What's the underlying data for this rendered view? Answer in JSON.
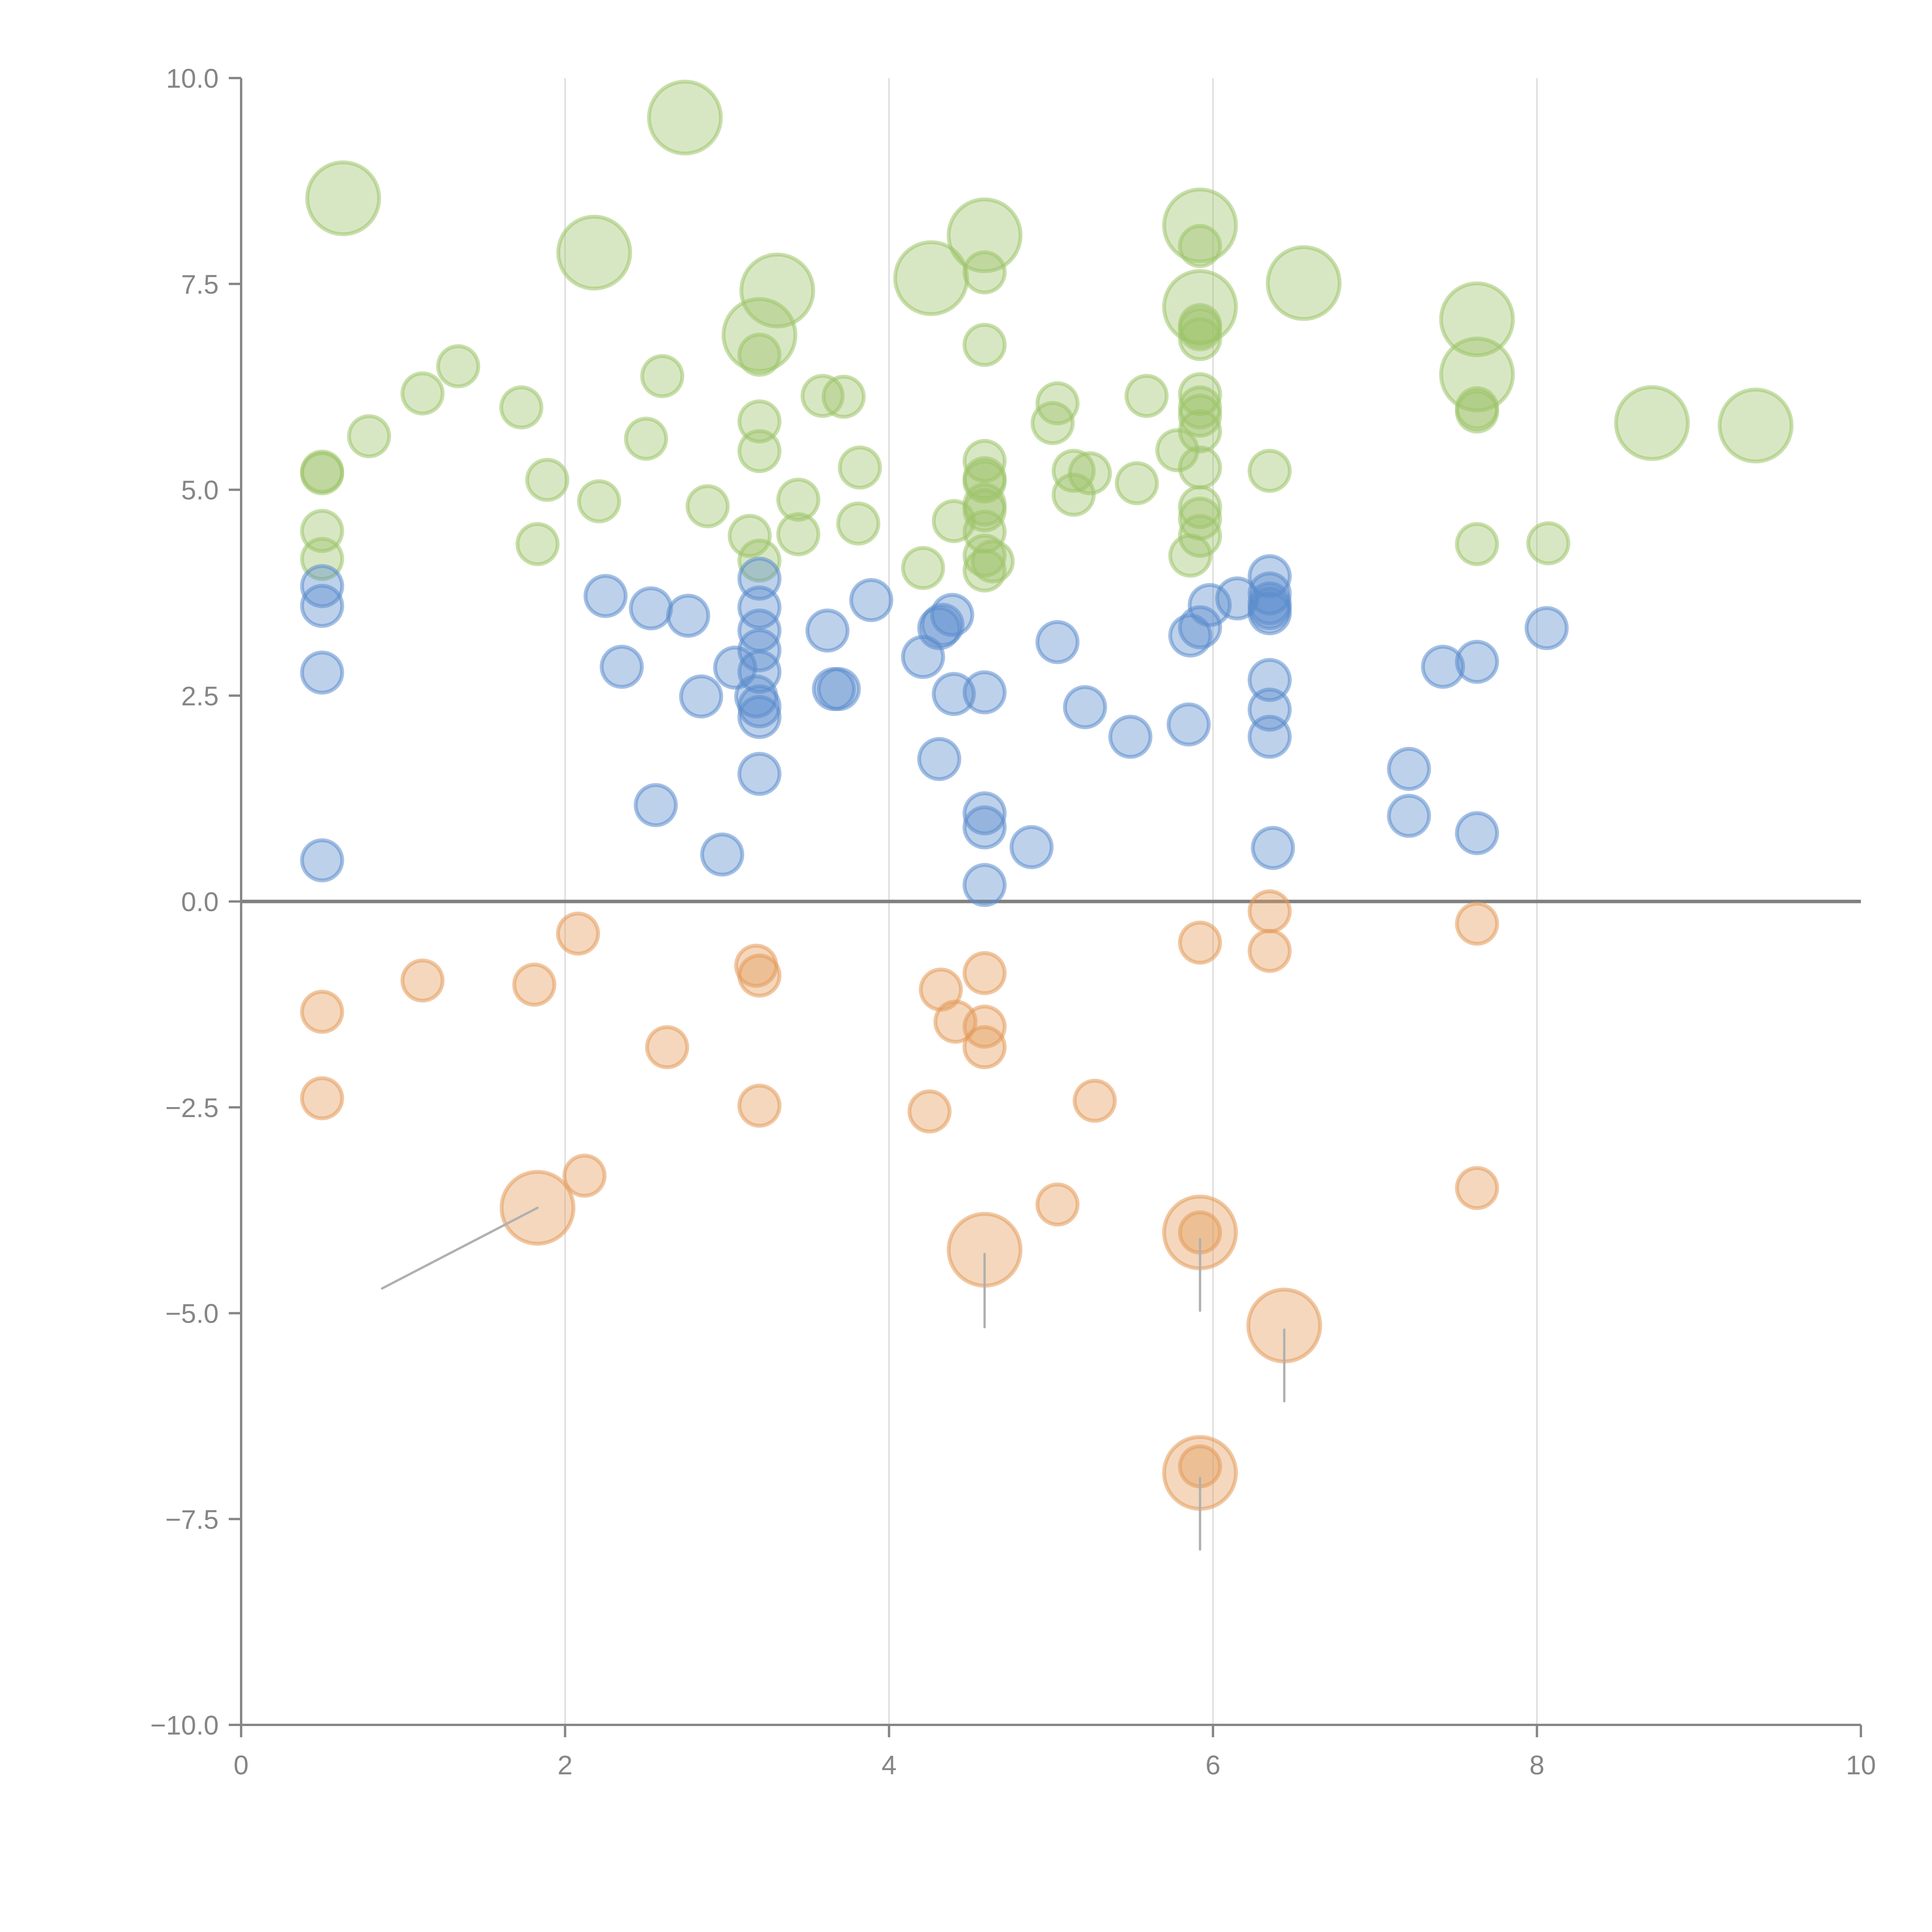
{
  "chart_data": {
    "type": "scatter",
    "subtype": "bubble",
    "title": "",
    "xlabel": "",
    "ylabel": "",
    "xlim": [
      0,
      10
    ],
    "ylim": [
      -10,
      10
    ],
    "x_ticks": [
      "0",
      "2",
      "4",
      "6",
      "8",
      "10"
    ],
    "x_tick_values": [
      0,
      2,
      4,
      6,
      8,
      10
    ],
    "y_ticks": [
      "10.0",
      "7.5",
      "5.0",
      "2.5",
      "0.0",
      "−2.5",
      "−5.0",
      "−7.5",
      "−10.0"
    ],
    "y_tick_values": [
      10,
      7.5,
      5,
      2.5,
      0,
      -2.5,
      -5,
      -7.5,
      -10
    ],
    "grid": "vertical lines at x ticks",
    "zero_line": true,
    "legend": "none",
    "series": [
      {
        "name": "green",
        "color": "#9dc46a",
        "points": [
          {
            "x": 0.63,
            "y": 8.54,
            "size": 3.2
          },
          {
            "x": 2.74,
            "y": 9.52,
            "size": 3.2
          },
          {
            "x": 2.18,
            "y": 7.88,
            "size": 3.2
          },
          {
            "x": 3.31,
            "y": 7.42,
            "size": 3.2
          },
          {
            "x": 3.2,
            "y": 6.88,
            "size": 3.2
          },
          {
            "x": 4.26,
            "y": 7.57,
            "size": 3.2
          },
          {
            "x": 4.59,
            "y": 8.09,
            "size": 3.2
          },
          {
            "x": 5.92,
            "y": 8.21,
            "size": 3.2
          },
          {
            "x": 5.92,
            "y": 7.22,
            "size": 3.2
          },
          {
            "x": 6.56,
            "y": 7.51,
            "size": 3.2
          },
          {
            "x": 7.63,
            "y": 7.07,
            "size": 3.2
          },
          {
            "x": 7.63,
            "y": 6.4,
            "size": 3.2
          },
          {
            "x": 8.71,
            "y": 5.81,
            "size": 3.2
          },
          {
            "x": 9.35,
            "y": 5.78,
            "size": 3.2
          },
          {
            "x": 0.5,
            "y": 5.2,
            "size": 1
          },
          {
            "x": 0.5,
            "y": 5.22,
            "size": 1
          },
          {
            "x": 0.5,
            "y": 4.5,
            "size": 1
          },
          {
            "x": 0.5,
            "y": 4.16,
            "size": 1
          },
          {
            "x": 0.79,
            "y": 5.65,
            "size": 1
          },
          {
            "x": 1.12,
            "y": 6.17,
            "size": 1
          },
          {
            "x": 1.34,
            "y": 6.5,
            "size": 1
          },
          {
            "x": 1.73,
            "y": 6.0,
            "size": 1
          },
          {
            "x": 1.89,
            "y": 5.12,
            "size": 1
          },
          {
            "x": 1.83,
            "y": 4.34,
            "size": 1
          },
          {
            "x": 2.21,
            "y": 4.86,
            "size": 1
          },
          {
            "x": 2.5,
            "y": 5.62,
            "size": 1
          },
          {
            "x": 2.6,
            "y": 6.38,
            "size": 1
          },
          {
            "x": 2.88,
            "y": 4.8,
            "size": 1
          },
          {
            "x": 3.14,
            "y": 4.44,
            "size": 1
          },
          {
            "x": 3.2,
            "y": 6.64,
            "size": 1
          },
          {
            "x": 3.2,
            "y": 5.83,
            "size": 1
          },
          {
            "x": 3.2,
            "y": 5.47,
            "size": 1
          },
          {
            "x": 3.2,
            "y": 4.14,
            "size": 1
          },
          {
            "x": 3.44,
            "y": 4.88,
            "size": 1
          },
          {
            "x": 3.44,
            "y": 4.46,
            "size": 1
          },
          {
            "x": 3.59,
            "y": 6.14,
            "size": 1
          },
          {
            "x": 3.72,
            "y": 6.13,
            "size": 1
          },
          {
            "x": 3.82,
            "y": 5.27,
            "size": 1
          },
          {
            "x": 3.81,
            "y": 4.59,
            "size": 1
          },
          {
            "x": 4.21,
            "y": 4.05,
            "size": 1
          },
          {
            "x": 4.4,
            "y": 4.62,
            "size": 1
          },
          {
            "x": 4.59,
            "y": 7.64,
            "size": 1
          },
          {
            "x": 4.59,
            "y": 6.76,
            "size": 1
          },
          {
            "x": 4.59,
            "y": 5.35,
            "size": 1
          },
          {
            "x": 4.59,
            "y": 5.14,
            "size": 1
          },
          {
            "x": 4.59,
            "y": 5.1,
            "size": 1
          },
          {
            "x": 4.59,
            "y": 4.82,
            "size": 1
          },
          {
            "x": 4.59,
            "y": 4.75,
            "size": 1
          },
          {
            "x": 4.59,
            "y": 4.49,
            "size": 1
          },
          {
            "x": 4.59,
            "y": 4.2,
            "size": 1
          },
          {
            "x": 4.59,
            "y": 4.02,
            "size": 1
          },
          {
            "x": 4.64,
            "y": 4.13,
            "size": 1
          },
          {
            "x": 5.01,
            "y": 5.81,
            "size": 1
          },
          {
            "x": 5.04,
            "y": 6.05,
            "size": 1
          },
          {
            "x": 5.14,
            "y": 5.23,
            "size": 1
          },
          {
            "x": 5.14,
            "y": 4.94,
            "size": 1
          },
          {
            "x": 5.24,
            "y": 5.2,
            "size": 1
          },
          {
            "x": 5.53,
            "y": 5.08,
            "size": 1
          },
          {
            "x": 5.59,
            "y": 6.14,
            "size": 1
          },
          {
            "x": 5.78,
            "y": 5.48,
            "size": 1
          },
          {
            "x": 5.86,
            "y": 4.2,
            "size": 1
          },
          {
            "x": 5.92,
            "y": 7.96,
            "size": 1
          },
          {
            "x": 5.92,
            "y": 7.0,
            "size": 1
          },
          {
            "x": 5.92,
            "y": 6.95,
            "size": 1
          },
          {
            "x": 5.92,
            "y": 6.83,
            "size": 1
          },
          {
            "x": 5.92,
            "y": 6.16,
            "size": 1
          },
          {
            "x": 5.92,
            "y": 6.0,
            "size": 1
          },
          {
            "x": 5.92,
            "y": 5.9,
            "size": 1
          },
          {
            "x": 5.92,
            "y": 5.71,
            "size": 1
          },
          {
            "x": 5.92,
            "y": 5.27,
            "size": 1
          },
          {
            "x": 5.92,
            "y": 4.79,
            "size": 1
          },
          {
            "x": 5.92,
            "y": 4.65,
            "size": 1
          },
          {
            "x": 5.92,
            "y": 4.44,
            "size": 1
          },
          {
            "x": 6.35,
            "y": 5.23,
            "size": 1
          },
          {
            "x": 7.63,
            "y": 5.99,
            "size": 1
          },
          {
            "x": 7.63,
            "y": 5.95,
            "size": 1
          },
          {
            "x": 7.63,
            "y": 4.34,
            "size": 1
          },
          {
            "x": 8.07,
            "y": 4.35,
            "size": 1
          }
        ]
      },
      {
        "name": "blue",
        "color": "#5b8ccc",
        "points": [
          {
            "x": 0.5,
            "y": 3.83,
            "size": 1
          },
          {
            "x": 0.5,
            "y": 3.59,
            "size": 1
          },
          {
            "x": 0.5,
            "y": 2.78,
            "size": 1
          },
          {
            "x": 0.5,
            "y": 0.5,
            "size": 1
          },
          {
            "x": 2.25,
            "y": 3.71,
            "size": 1
          },
          {
            "x": 2.35,
            "y": 2.85,
            "size": 1
          },
          {
            "x": 2.53,
            "y": 3.56,
            "size": 1
          },
          {
            "x": 2.56,
            "y": 1.17,
            "size": 1
          },
          {
            "x": 2.76,
            "y": 3.47,
            "size": 1
          },
          {
            "x": 2.84,
            "y": 2.49,
            "size": 1
          },
          {
            "x": 2.97,
            "y": 0.57,
            "size": 1
          },
          {
            "x": 3.05,
            "y": 2.84,
            "size": 1
          },
          {
            "x": 3.2,
            "y": 3.92,
            "size": 1
          },
          {
            "x": 3.2,
            "y": 3.57,
            "size": 1
          },
          {
            "x": 3.2,
            "y": 3.29,
            "size": 1
          },
          {
            "x": 3.2,
            "y": 3.05,
            "size": 1
          },
          {
            "x": 3.2,
            "y": 2.79,
            "size": 1
          },
          {
            "x": 3.18,
            "y": 2.49,
            "size": 1
          },
          {
            "x": 3.2,
            "y": 2.37,
            "size": 1
          },
          {
            "x": 3.2,
            "y": 2.24,
            "size": 1
          },
          {
            "x": 3.2,
            "y": 1.55,
            "size": 1
          },
          {
            "x": 3.62,
            "y": 3.29,
            "size": 1
          },
          {
            "x": 3.66,
            "y": 2.58,
            "size": 1
          },
          {
            "x": 3.69,
            "y": 2.58,
            "size": 1
          },
          {
            "x": 3.89,
            "y": 3.66,
            "size": 1
          },
          {
            "x": 4.21,
            "y": 2.97,
            "size": 1
          },
          {
            "x": 4.31,
            "y": 3.32,
            "size": 1
          },
          {
            "x": 4.33,
            "y": 3.36,
            "size": 1
          },
          {
            "x": 4.39,
            "y": 3.48,
            "size": 1
          },
          {
            "x": 4.4,
            "y": 2.52,
            "size": 1
          },
          {
            "x": 4.31,
            "y": 1.73,
            "size": 1
          },
          {
            "x": 4.59,
            "y": 2.54,
            "size": 1
          },
          {
            "x": 4.59,
            "y": 1.07,
            "size": 1
          },
          {
            "x": 4.59,
            "y": 0.9,
            "size": 1
          },
          {
            "x": 4.59,
            "y": 0.2,
            "size": 1
          },
          {
            "x": 4.88,
            "y": 0.66,
            "size": 1
          },
          {
            "x": 5.04,
            "y": 3.15,
            "size": 1
          },
          {
            "x": 5.21,
            "y": 2.36,
            "size": 1
          },
          {
            "x": 5.49,
            "y": 2.0,
            "size": 1
          },
          {
            "x": 5.86,
            "y": 3.23,
            "size": 1
          },
          {
            "x": 5.92,
            "y": 3.33,
            "size": 1
          },
          {
            "x": 5.98,
            "y": 3.6,
            "size": 1
          },
          {
            "x": 5.85,
            "y": 2.15,
            "size": 1
          },
          {
            "x": 6.15,
            "y": 3.68,
            "size": 1
          },
          {
            "x": 6.35,
            "y": 3.95,
            "size": 1
          },
          {
            "x": 6.35,
            "y": 3.74,
            "size": 1
          },
          {
            "x": 6.35,
            "y": 3.62,
            "size": 1
          },
          {
            "x": 6.35,
            "y": 3.56,
            "size": 1
          },
          {
            "x": 6.35,
            "y": 3.5,
            "size": 1
          },
          {
            "x": 6.35,
            "y": 2.69,
            "size": 1
          },
          {
            "x": 6.35,
            "y": 2.33,
            "size": 1
          },
          {
            "x": 6.35,
            "y": 2.0,
            "size": 1
          },
          {
            "x": 6.37,
            "y": 0.65,
            "size": 1
          },
          {
            "x": 7.21,
            "y": 1.61,
            "size": 1
          },
          {
            "x": 7.21,
            "y": 1.04,
            "size": 1
          },
          {
            "x": 7.42,
            "y": 2.85,
            "size": 1
          },
          {
            "x": 7.63,
            "y": 2.91,
            "size": 1
          },
          {
            "x": 7.63,
            "y": 0.83,
            "size": 1
          },
          {
            "x": 8.06,
            "y": 3.32,
            "size": 1
          }
        ]
      },
      {
        "name": "orange",
        "color": "#e49a5a",
        "points": [
          {
            "x": 0.5,
            "y": -1.34,
            "size": 1
          },
          {
            "x": 0.5,
            "y": -2.39,
            "size": 1
          },
          {
            "x": 1.12,
            "y": -0.96,
            "size": 1
          },
          {
            "x": 1.81,
            "y": -1.01,
            "size": 1
          },
          {
            "x": 2.08,
            "y": -0.39,
            "size": 1
          },
          {
            "x": 2.63,
            "y": -1.77,
            "size": 1
          },
          {
            "x": 2.12,
            "y": -3.33,
            "size": 1
          },
          {
            "x": 1.83,
            "y": -3.72,
            "size": 3.2
          },
          {
            "x": 3.18,
            "y": -0.78,
            "size": 1
          },
          {
            "x": 3.2,
            "y": -0.9,
            "size": 1
          },
          {
            "x": 3.2,
            "y": -2.48,
            "size": 1
          },
          {
            "x": 4.25,
            "y": -2.55,
            "size": 1
          },
          {
            "x": 4.32,
            "y": -1.07,
            "size": 1
          },
          {
            "x": 4.41,
            "y": -1.46,
            "size": 1
          },
          {
            "x": 4.59,
            "y": -0.87,
            "size": 1
          },
          {
            "x": 4.59,
            "y": -1.52,
            "size": 1
          },
          {
            "x": 4.59,
            "y": -1.77,
            "size": 1
          },
          {
            "x": 4.59,
            "y": -4.23,
            "size": 3.2
          },
          {
            "x": 5.04,
            "y": -3.68,
            "size": 1
          },
          {
            "x": 5.27,
            "y": -2.42,
            "size": 1
          },
          {
            "x": 5.92,
            "y": -0.5,
            "size": 1
          },
          {
            "x": 5.92,
            "y": -4.02,
            "size": 3.2
          },
          {
            "x": 5.92,
            "y": -4.02,
            "size": 1
          },
          {
            "x": 6.44,
            "y": -5.15,
            "size": 3.2
          },
          {
            "x": 5.92,
            "y": -6.94,
            "size": 3.2
          },
          {
            "x": 5.92,
            "y": -6.86,
            "size": 1
          },
          {
            "x": 6.35,
            "y": -0.12,
            "size": 1
          },
          {
            "x": 6.35,
            "y": -0.6,
            "size": 1
          },
          {
            "x": 7.63,
            "y": -0.27,
            "size": 1
          },
          {
            "x": 7.63,
            "y": -3.48,
            "size": 1
          }
        ]
      }
    ],
    "leader_lines": [
      {
        "from": {
          "x": 1.83,
          "y": -3.72
        },
        "to": {
          "x": 0.87,
          "y": -4.7
        }
      },
      {
        "from": {
          "x": 4.59,
          "y": -4.28
        },
        "to": {
          "x": 4.59,
          "y": -5.17
        }
      },
      {
        "from": {
          "x": 5.92,
          "y": -4.1
        },
        "to": {
          "x": 5.92,
          "y": -4.97
        }
      },
      {
        "from": {
          "x": 6.44,
          "y": -5.2
        },
        "to": {
          "x": 6.44,
          "y": -6.07
        }
      },
      {
        "from": {
          "x": 5.92,
          "y": -7.0
        },
        "to": {
          "x": 5.92,
          "y": -7.87
        }
      }
    ]
  }
}
